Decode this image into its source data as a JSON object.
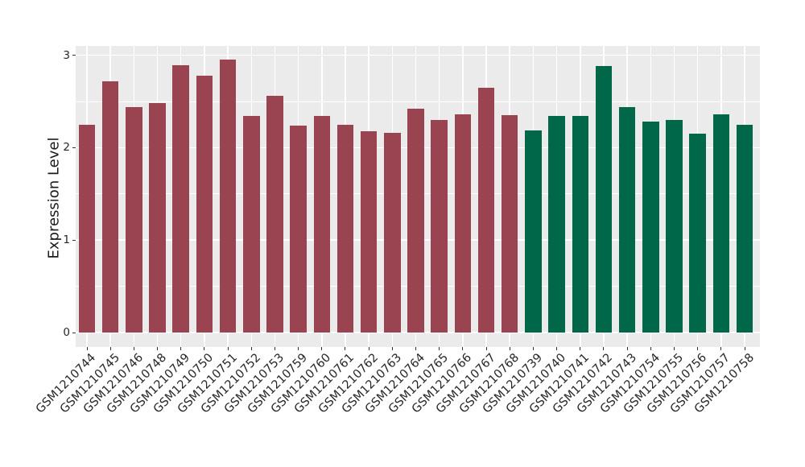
{
  "chart_data": {
    "type": "bar",
    "title": "",
    "xlabel": "",
    "ylabel": "Expression Level",
    "ylim": [
      0,
      3.1
    ],
    "yticks": [
      "0",
      "1",
      "2",
      "3"
    ],
    "grid": true,
    "legend_position": "none",
    "panel_background": "#EBEBEB",
    "gridline_color": "#FFFFFF",
    "axis_text_color": "#262626",
    "tick_mark_color": "#333333",
    "group_colors": [
      "#9A4351",
      "#006849"
    ],
    "bars": [
      {
        "label": "GSM1210744",
        "value": 2.25,
        "group": 0
      },
      {
        "label": "GSM1210745",
        "value": 2.72,
        "group": 0
      },
      {
        "label": "GSM1210746",
        "value": 2.44,
        "group": 0
      },
      {
        "label": "GSM1210748",
        "value": 2.48,
        "group": 0
      },
      {
        "label": "GSM1210749",
        "value": 2.89,
        "group": 0
      },
      {
        "label": "GSM1210750",
        "value": 2.78,
        "group": 0
      },
      {
        "label": "GSM1210751",
        "value": 2.95,
        "group": 0
      },
      {
        "label": "GSM1210752",
        "value": 2.34,
        "group": 0
      },
      {
        "label": "GSM1210753",
        "value": 2.56,
        "group": 0
      },
      {
        "label": "GSM1210759",
        "value": 2.24,
        "group": 0
      },
      {
        "label": "GSM1210760",
        "value": 2.34,
        "group": 0
      },
      {
        "label": "GSM1210761",
        "value": 2.25,
        "group": 0
      },
      {
        "label": "GSM1210762",
        "value": 2.18,
        "group": 0
      },
      {
        "label": "GSM1210763",
        "value": 2.16,
        "group": 0
      },
      {
        "label": "GSM1210764",
        "value": 2.42,
        "group": 0
      },
      {
        "label": "GSM1210765",
        "value": 2.3,
        "group": 0
      },
      {
        "label": "GSM1210766",
        "value": 2.36,
        "group": 0
      },
      {
        "label": "GSM1210767",
        "value": 2.65,
        "group": 0
      },
      {
        "label": "GSM1210768",
        "value": 2.35,
        "group": 0
      },
      {
        "label": "GSM1210739",
        "value": 2.19,
        "group": 1
      },
      {
        "label": "GSM1210740",
        "value": 2.34,
        "group": 1
      },
      {
        "label": "GSM1210741",
        "value": 2.34,
        "group": 1
      },
      {
        "label": "GSM1210742",
        "value": 2.88,
        "group": 1
      },
      {
        "label": "GSM1210743",
        "value": 2.44,
        "group": 1
      },
      {
        "label": "GSM1210754",
        "value": 2.28,
        "group": 1
      },
      {
        "label": "GSM1210755",
        "value": 2.3,
        "group": 1
      },
      {
        "label": "GSM1210756",
        "value": 2.15,
        "group": 1
      },
      {
        "label": "GSM1210757",
        "value": 2.36,
        "group": 1
      },
      {
        "label": "GSM1210758",
        "value": 2.25,
        "group": 1
      }
    ]
  }
}
